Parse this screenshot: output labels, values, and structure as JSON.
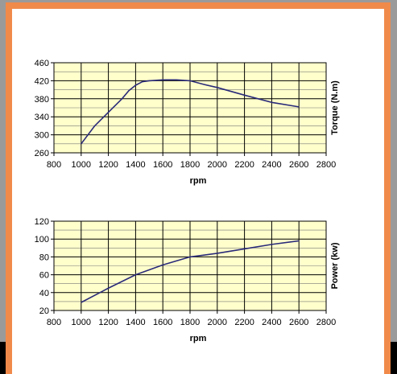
{
  "colors": {
    "plot_bg": "#ffffcc",
    "series": "#2a2a7a",
    "grid": "#000000",
    "frame": "#f08a4a",
    "panel": "#ffffff"
  },
  "chart_data": [
    {
      "type": "line",
      "xlabel": "rpm",
      "ylabel": "Torque (N.m)",
      "xlim": [
        800,
        2800
      ],
      "ylim": [
        260,
        460
      ],
      "xticks": [
        800,
        1000,
        1200,
        1400,
        1600,
        1800,
        2000,
        2200,
        2400,
        2600,
        2800
      ],
      "yticks": [
        260,
        300,
        340,
        380,
        420,
        460
      ],
      "yticks_min": [
        280,
        320,
        360,
        400,
        440
      ],
      "grid": true,
      "series": [
        {
          "x": [
            1000,
            1100,
            1200,
            1300,
            1350,
            1400,
            1450,
            1500,
            1600,
            1700,
            1800,
            1900,
            2000,
            2200,
            2400,
            2600
          ],
          "y": [
            280,
            320,
            350,
            380,
            398,
            410,
            418,
            420,
            422,
            422,
            420,
            412,
            405,
            388,
            372,
            362
          ]
        }
      ]
    },
    {
      "type": "line",
      "xlabel": "rpm",
      "ylabel": "Power (kw)",
      "xlim": [
        800,
        2800
      ],
      "ylim": [
        20,
        120
      ],
      "xticks": [
        800,
        1000,
        1200,
        1400,
        1600,
        1800,
        2000,
        2200,
        2400,
        2600,
        2800
      ],
      "yticks": [
        20,
        40,
        60,
        80,
        100,
        120
      ],
      "yticks_min": [
        30,
        50,
        70,
        90,
        110
      ],
      "grid": true,
      "series": [
        {
          "x": [
            1000,
            1200,
            1400,
            1600,
            1800,
            2000,
            2200,
            2400,
            2600
          ],
          "y": [
            29,
            45,
            60,
            71,
            80,
            84,
            89,
            94,
            98
          ]
        }
      ]
    }
  ]
}
